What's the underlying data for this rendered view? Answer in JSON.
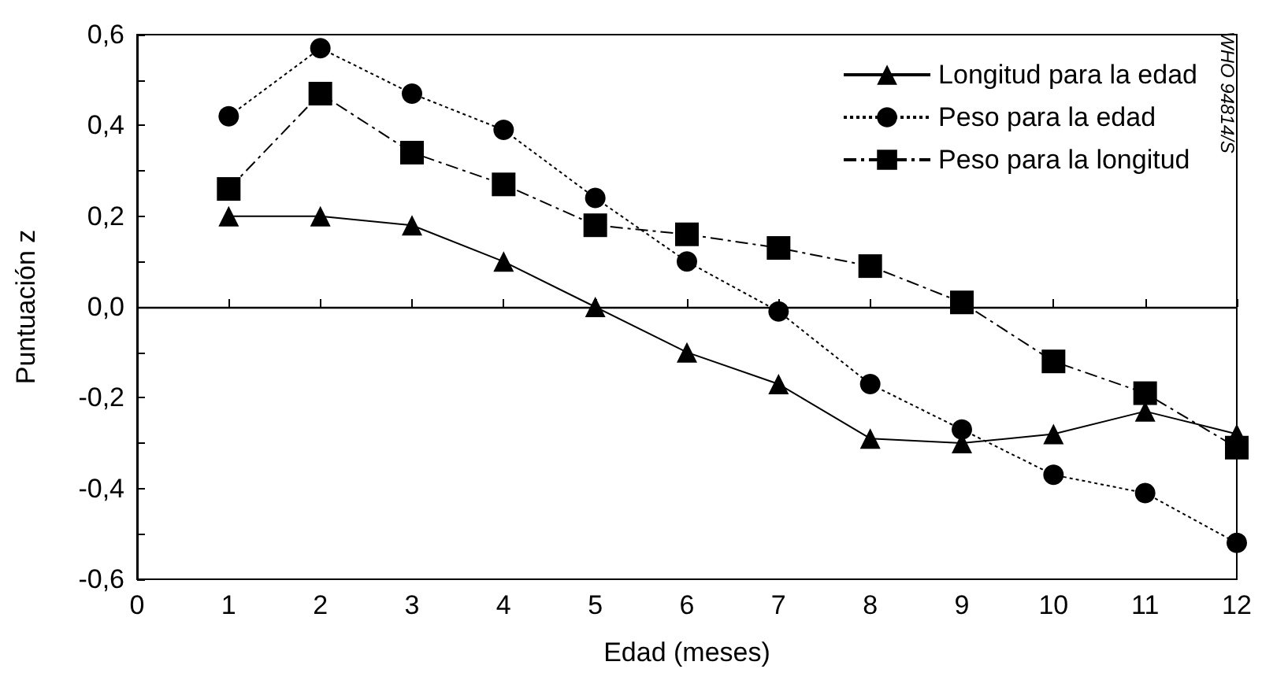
{
  "chart_data": {
    "type": "line",
    "xlabel": "Edad (meses)",
    "ylabel": "Puntuación z",
    "x": [
      1,
      2,
      3,
      4,
      5,
      6,
      7,
      8,
      9,
      10,
      11,
      12
    ],
    "series": [
      {
        "name": "Longitud para la edad",
        "color": "#000000",
        "marker": "triangle",
        "line_style": "solid",
        "values": [
          0.2,
          0.2,
          0.18,
          0.1,
          0.0,
          -0.1,
          -0.17,
          -0.29,
          -0.3,
          -0.28,
          -0.23,
          -0.28
        ]
      },
      {
        "name": "Peso para la edad",
        "color": "#000000",
        "marker": "circle",
        "line_style": "dotted",
        "values": [
          0.42,
          0.57,
          0.47,
          0.39,
          0.24,
          0.1,
          -0.01,
          -0.17,
          -0.27,
          -0.37,
          -0.41,
          -0.52
        ]
      },
      {
        "name": "Peso para la longitud",
        "color": "#000000",
        "marker": "square",
        "line_style": "dashed",
        "values": [
          0.26,
          0.47,
          0.34,
          0.27,
          0.18,
          0.16,
          0.13,
          0.09,
          0.01,
          -0.12,
          -0.19,
          -0.31
        ]
      }
    ],
    "xlim": [
      0,
      12
    ],
    "xticks": [
      0,
      1,
      2,
      3,
      4,
      5,
      6,
      7,
      8,
      9,
      10,
      11,
      12
    ],
    "ylim": [
      -0.6,
      0.6
    ],
    "yticks": [
      {
        "value": -0.6,
        "label": "-0,6"
      },
      {
        "value": -0.5,
        "label": null
      },
      {
        "value": -0.4,
        "label": "-0,4"
      },
      {
        "value": -0.3,
        "label": null
      },
      {
        "value": -0.2,
        "label": "-0,2"
      },
      {
        "value": -0.1,
        "label": null
      },
      {
        "value": 0,
        "label": "0,0"
      },
      {
        "value": 0.1,
        "label": null
      },
      {
        "value": 0.2,
        "label": "0,2"
      },
      {
        "value": 0.3,
        "label": null
      },
      {
        "value": 0.4,
        "label": "0,4"
      },
      {
        "value": 0.5,
        "label": null
      },
      {
        "value": 0.6,
        "label": "0,6"
      }
    ],
    "ref_lines": [
      {
        "axis": "y",
        "value": 0,
        "color": "#000000",
        "line_style": "solid"
      }
    ],
    "annotations": [
      "WHO 94814/S"
    ],
    "grid": false,
    "legend": "top right"
  }
}
